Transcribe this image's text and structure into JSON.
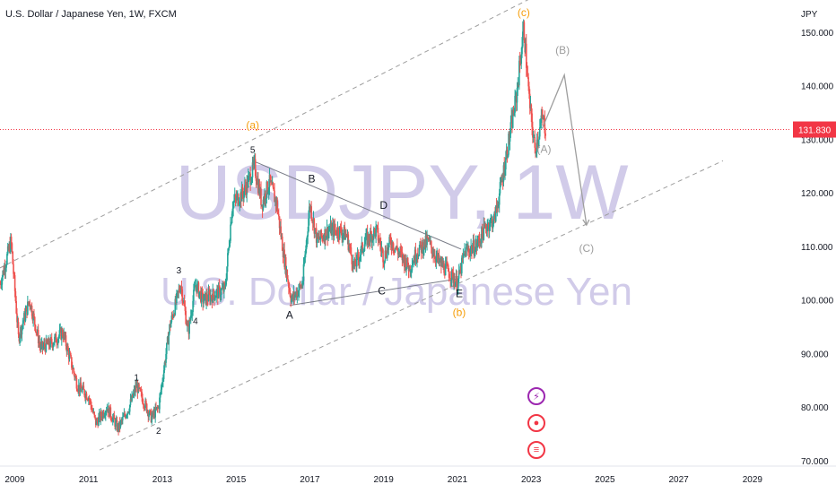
{
  "header": {
    "title": "U.S. Dollar / Japanese Yen, 1W, FXCM"
  },
  "watermark": {
    "symbol": "USDJPY, 1W",
    "name": "U.S. Dollar / Japanese Yen"
  },
  "colors": {
    "up": "#26a69a",
    "down": "#ef5350",
    "channel": "#9e9e9e",
    "triangle": "#787b86",
    "projection": "#9e9e9e",
    "wave_label_orange": "#f59e0b",
    "wave_label_dark": "#131722",
    "watermark": "#c9c3e6",
    "price_badge": "#f23645"
  },
  "badges": [
    {
      "name": "lightning-icon",
      "color": "#9c27b0"
    },
    {
      "name": "record-icon",
      "color": "#f23645"
    },
    {
      "name": "us-flag-icon",
      "color": "#f23645"
    }
  ],
  "chart_data": {
    "type": "candlestick",
    "title": "U.S. Dollar / Japanese Yen, 1W, FXCM",
    "y_unit": "JPY",
    "xlim": [
      2008.6,
      2030.0
    ],
    "ylim": [
      70,
      153
    ],
    "x_ticks": [
      "2009",
      "2011",
      "2013",
      "2015",
      "2017",
      "2019",
      "2021",
      "2023",
      "2025",
      "2027",
      "2029"
    ],
    "y_ticks": [
      "150.000",
      "140.000",
      "130.000",
      "120.000",
      "110.000",
      "100.000",
      "90.000",
      "80.000",
      "70.000"
    ],
    "last_price": "131.830",
    "grid": false,
    "price_path": [
      [
        2008.6,
        103
      ],
      [
        2008.9,
        111
      ],
      [
        2009.1,
        93
      ],
      [
        2009.4,
        100
      ],
      [
        2009.7,
        91
      ],
      [
        2010.0,
        92
      ],
      [
        2010.3,
        94
      ],
      [
        2010.7,
        84
      ],
      [
        2011.0,
        82
      ],
      [
        2011.2,
        77
      ],
      [
        2011.5,
        80
      ],
      [
        2011.8,
        76
      ],
      [
        2012.1,
        80
      ],
      [
        2012.3,
        84
      ],
      [
        2012.7,
        78
      ],
      [
        2012.9,
        80
      ],
      [
        2013.2,
        95
      ],
      [
        2013.5,
        103
      ],
      [
        2013.7,
        94
      ],
      [
        2013.9,
        103
      ],
      [
        2014.1,
        100
      ],
      [
        2014.4,
        101
      ],
      [
        2014.7,
        102
      ],
      [
        2014.9,
        118
      ],
      [
        2015.2,
        120
      ],
      [
        2015.5,
        125
      ],
      [
        2015.7,
        118
      ],
      [
        2015.9,
        122
      ],
      [
        2016.1,
        118
      ],
      [
        2016.3,
        108
      ],
      [
        2016.5,
        100
      ],
      [
        2016.8,
        103
      ],
      [
        2017.0,
        118
      ],
      [
        2017.2,
        111
      ],
      [
        2017.5,
        113
      ],
      [
        2017.8,
        113
      ],
      [
        2018.0,
        112
      ],
      [
        2018.2,
        106
      ],
      [
        2018.5,
        111
      ],
      [
        2018.8,
        113
      ],
      [
        2019.0,
        108
      ],
      [
        2019.2,
        111
      ],
      [
        2019.5,
        108
      ],
      [
        2019.7,
        106
      ],
      [
        2019.9,
        109
      ],
      [
        2020.2,
        111
      ],
      [
        2020.5,
        107
      ],
      [
        2020.8,
        105
      ],
      [
        2021.0,
        103
      ],
      [
        2021.2,
        109
      ],
      [
        2021.5,
        110
      ],
      [
        2021.8,
        114
      ],
      [
        2022.0,
        115
      ],
      [
        2022.2,
        122
      ],
      [
        2022.4,
        130
      ],
      [
        2022.6,
        138
      ],
      [
        2022.8,
        151
      ],
      [
        2022.95,
        137
      ],
      [
        2023.1,
        128
      ],
      [
        2023.3,
        134
      ],
      [
        2023.4,
        131.8
      ]
    ],
    "channel_lines": [
      {
        "from": [
          2008.6,
          106
        ],
        "to": [
          2024.9,
          163
        ]
      },
      {
        "from": [
          2011.3,
          72
        ],
        "to": [
          2028.2,
          126
        ]
      }
    ],
    "triangle_lines": [
      {
        "from": [
          2015.45,
          126
        ],
        "to": [
          2021.1,
          109.5
        ]
      },
      {
        "from": [
          2016.45,
          99
        ],
        "to": [
          2021.05,
          104
        ]
      }
    ],
    "projection_path": [
      [
        2023.3,
        132
      ],
      [
        2023.9,
        142
      ],
      [
        2024.5,
        114
      ]
    ],
    "wave_labels": [
      {
        "text": "(c)",
        "x": 2022.8,
        "y": 153,
        "color": "orange"
      },
      {
        "text": "(a)",
        "x": 2015.45,
        "y": 132,
        "color": "orange"
      },
      {
        "text": "(b)",
        "x": 2021.05,
        "y": 97,
        "color": "orange"
      },
      {
        "text": "5",
        "x": 2015.45,
        "y": 127.5,
        "color": "dark"
      },
      {
        "text": "B",
        "x": 2017.05,
        "y": 122,
        "color": "dark"
      },
      {
        "text": "D",
        "x": 2019.0,
        "y": 117,
        "color": "dark"
      },
      {
        "text": "C",
        "x": 2018.95,
        "y": 101,
        "color": "dark"
      },
      {
        "text": "A",
        "x": 2016.45,
        "y": 96.5,
        "color": "dark"
      },
      {
        "text": "E",
        "x": 2021.05,
        "y": 100.5,
        "color": "dark"
      },
      {
        "text": "3",
        "x": 2013.45,
        "y": 105,
        "color": "dark"
      },
      {
        "text": "4",
        "x": 2013.9,
        "y": 95.5,
        "color": "dark"
      },
      {
        "text": "1",
        "x": 2012.3,
        "y": 85,
        "color": "dark"
      },
      {
        "text": "2",
        "x": 2012.9,
        "y": 75,
        "color": "dark"
      },
      {
        "text": "(B)",
        "x": 2023.85,
        "y": 146,
        "color": "gray"
      },
      {
        "text": "(A)",
        "x": 2023.35,
        "y": 127.5,
        "color": "gray"
      },
      {
        "text": "(C)",
        "x": 2024.5,
        "y": 109,
        "color": "gray"
      }
    ]
  }
}
